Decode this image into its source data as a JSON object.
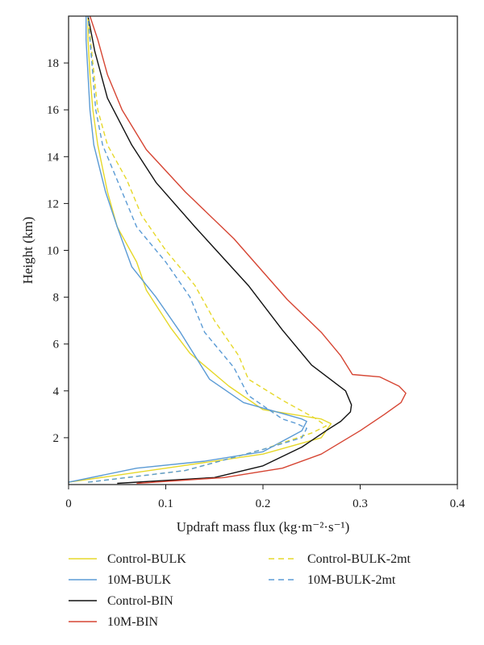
{
  "chart_data": {
    "type": "line",
    "xlabel": "Updraft mass flux (kg·m⁻²·s⁻¹)",
    "ylabel": "Height (km)",
    "xlim": [
      0,
      0.4
    ],
    "ylim": [
      0,
      20
    ],
    "x_ticks": [
      0,
      0.1,
      0.2,
      0.3,
      0.4
    ],
    "x_tick_labels": [
      "0",
      "0.1",
      "0.2",
      "0.3",
      "0.4"
    ],
    "y_ticks": [
      2,
      4,
      6,
      8,
      10,
      12,
      14,
      16,
      18
    ],
    "y_tick_labels": [
      "2",
      "4",
      "6",
      "8",
      "10",
      "12",
      "14",
      "16",
      "18"
    ],
    "grid": false,
    "legend_position": "bottom",
    "series": [
      {
        "name": "Control-BULK",
        "color": "#e6d82a",
        "dash": "solid",
        "x": [
          0.0,
          0.1,
          0.2,
          0.26,
          0.27,
          0.26,
          0.2,
          0.165,
          0.125,
          0.105,
          0.08,
          0.07,
          0.05,
          0.04,
          0.03,
          0.025,
          0.022,
          0.02,
          0.02
        ],
        "y": [
          0.1,
          0.7,
          1.3,
          2.0,
          2.6,
          2.8,
          3.2,
          4.2,
          5.6,
          6.7,
          8.3,
          9.5,
          11.0,
          12.5,
          14.5,
          16.0,
          17.5,
          19.0,
          20.0
        ]
      },
      {
        "name": "10M-BULK",
        "color": "#5b9bd5",
        "dash": "solid",
        "x": [
          0.0,
          0.07,
          0.14,
          0.2,
          0.24,
          0.245,
          0.24,
          0.18,
          0.145,
          0.115,
          0.09,
          0.065,
          0.05,
          0.038,
          0.026,
          0.022,
          0.02,
          0.018,
          0.018
        ],
        "y": [
          0.1,
          0.7,
          1.0,
          1.4,
          2.3,
          2.7,
          2.8,
          3.5,
          4.5,
          6.5,
          8.0,
          9.3,
          11.0,
          12.5,
          14.5,
          16.0,
          17.5,
          19.0,
          20.0
        ]
      },
      {
        "name": "Control-BIN",
        "color": "#111111",
        "dash": "solid",
        "x": [
          0.05,
          0.15,
          0.2,
          0.24,
          0.265,
          0.28,
          0.29,
          0.291,
          0.285,
          0.25,
          0.22,
          0.185,
          0.13,
          0.09,
          0.065,
          0.04,
          0.027,
          0.02
        ],
        "y": [
          0.05,
          0.3,
          0.8,
          1.6,
          2.3,
          2.7,
          3.1,
          3.4,
          4.0,
          5.1,
          6.6,
          8.5,
          11.0,
          12.9,
          14.5,
          16.5,
          18.5,
          20.0
        ]
      },
      {
        "name": "10M-BIN",
        "color": "#d64533",
        "dash": "solid",
        "x": [
          0.07,
          0.16,
          0.22,
          0.26,
          0.3,
          0.325,
          0.342,
          0.347,
          0.34,
          0.32,
          0.292,
          0.28,
          0.26,
          0.225,
          0.17,
          0.12,
          0.08,
          0.055,
          0.04,
          0.03,
          0.022
        ],
        "y": [
          0.05,
          0.3,
          0.7,
          1.3,
          2.3,
          3.0,
          3.5,
          3.9,
          4.2,
          4.6,
          4.7,
          5.5,
          6.5,
          7.9,
          10.5,
          12.5,
          14.3,
          16.0,
          17.5,
          19.0,
          20.0
        ]
      },
      {
        "name": "Control-BULK-2mt",
        "color": "#e6d82a",
        "dash": "dashed",
        "x": [
          0.02,
          0.12,
          0.2,
          0.25,
          0.265,
          0.255,
          0.22,
          0.185,
          0.175,
          0.15,
          0.13,
          0.1,
          0.075,
          0.06,
          0.04,
          0.03,
          0.025,
          0.02
        ],
        "y": [
          0.1,
          0.6,
          1.5,
          2.2,
          2.5,
          2.8,
          3.6,
          4.5,
          5.5,
          7.0,
          8.5,
          10.0,
          11.5,
          13.0,
          14.5,
          16.0,
          18.0,
          20.0
        ]
      },
      {
        "name": "10M-BULK-2mt",
        "color": "#5b9bd5",
        "dash": "dashed",
        "x": [
          0.02,
          0.12,
          0.2,
          0.24,
          0.245,
          0.235,
          0.22,
          0.185,
          0.17,
          0.14,
          0.125,
          0.1,
          0.07,
          0.055,
          0.035,
          0.028,
          0.024,
          0.02
        ],
        "y": [
          0.1,
          0.6,
          1.5,
          2.0,
          2.4,
          2.6,
          2.8,
          3.8,
          5.0,
          6.5,
          8.0,
          9.5,
          11.0,
          12.5,
          14.5,
          16.0,
          18.0,
          20.0
        ]
      }
    ]
  }
}
